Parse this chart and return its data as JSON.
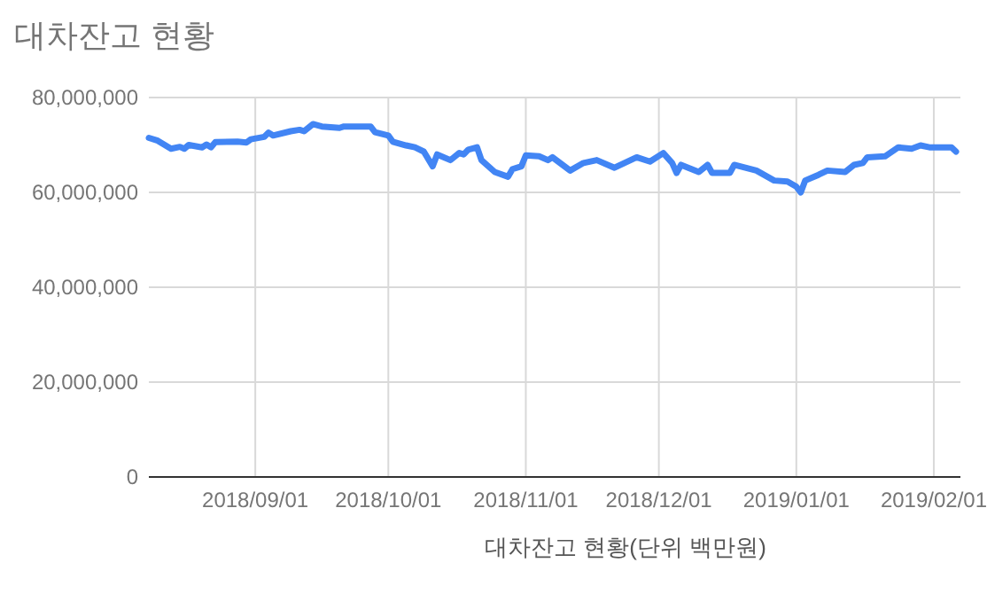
{
  "chart_data": {
    "type": "line",
    "title": "대차잔고 현황",
    "xlabel": "대차잔고 현황(단위 백만원)",
    "x": [
      "2018-08-08",
      "2018-08-10",
      "2018-08-13",
      "2018-08-15",
      "2018-08-16",
      "2018-08-17",
      "2018-08-20",
      "2018-08-21",
      "2018-08-22",
      "2018-08-23",
      "2018-08-28",
      "2018-08-30",
      "2018-08-31",
      "2018-09-03",
      "2018-09-04",
      "2018-09-05",
      "2018-09-09",
      "2018-09-11",
      "2018-09-12",
      "2018-09-14",
      "2018-09-16",
      "2018-09-20",
      "2018-09-21",
      "2018-09-27",
      "2018-09-28",
      "2018-10-01",
      "2018-10-02",
      "2018-10-05",
      "2018-10-07",
      "2018-10-09",
      "2018-10-11",
      "2018-10-12",
      "2018-10-15",
      "2018-10-17",
      "2018-10-18",
      "2018-10-19",
      "2018-10-21",
      "2018-10-22",
      "2018-10-25",
      "2018-10-28",
      "2018-10-29",
      "2018-10-31",
      "2018-11-01",
      "2018-11-04",
      "2018-11-06",
      "2018-11-07",
      "2018-11-11",
      "2018-11-14",
      "2018-11-17",
      "2018-11-21",
      "2018-11-26",
      "2018-11-29",
      "2018-12-02",
      "2018-12-04",
      "2018-12-05",
      "2018-12-06",
      "2018-12-10",
      "2018-12-12",
      "2018-12-13",
      "2018-12-17",
      "2018-12-18",
      "2018-12-23",
      "2018-12-27",
      "2018-12-30",
      "2019-01-01",
      "2019-01-02",
      "2019-01-03",
      "2019-01-06",
      "2019-01-08",
      "2019-01-12",
      "2019-01-14",
      "2019-01-16",
      "2019-01-17",
      "2019-01-21",
      "2019-01-24",
      "2019-01-27",
      "2019-01-29",
      "2019-01-31",
      "2019-02-05",
      "2019-02-06"
    ],
    "series": [
      {
        "color": "#4285f4",
        "values": [
          71500000,
          70900000,
          69200000,
          69600000,
          69200000,
          70000000,
          69500000,
          70100000,
          69500000,
          70600000,
          70700000,
          70500000,
          71200000,
          71700000,
          72600000,
          72000000,
          72900000,
          73200000,
          72900000,
          74400000,
          73900000,
          73600000,
          73900000,
          73900000,
          72700000,
          72000000,
          70700000,
          69900000,
          69500000,
          68600000,
          65500000,
          68000000,
          66800000,
          68300000,
          68000000,
          69000000,
          69500000,
          66800000,
          64300000,
          63300000,
          64900000,
          65500000,
          67800000,
          67600000,
          66800000,
          67400000,
          64600000,
          66200000,
          66800000,
          65200000,
          67400000,
          66500000,
          68300000,
          66200000,
          64100000,
          65800000,
          64300000,
          65800000,
          64100000,
          64100000,
          65800000,
          64600000,
          62500000,
          62300000,
          61200000,
          60000000,
          62500000,
          63700000,
          64600000,
          64300000,
          65800000,
          66200000,
          67400000,
          67600000,
          69500000,
          69200000,
          69900000,
          69500000,
          69500000,
          68600000
        ]
      }
    ],
    "xlim": [
      "2018-08-08",
      "2019-02-07"
    ],
    "xticks": [
      {
        "value": "2018-09-01",
        "label": "2018/09/01"
      },
      {
        "value": "2018-10-01",
        "label": "2018/10/01"
      },
      {
        "value": "2018-11-01",
        "label": "2018/11/01"
      },
      {
        "value": "2018-12-01",
        "label": "2018/12/01"
      },
      {
        "value": "2019-01-01",
        "label": "2019/01/01"
      },
      {
        "value": "2019-02-01",
        "label": "2019/02/01"
      }
    ],
    "ylim": [
      0,
      80000000
    ],
    "yticks": [
      0,
      {
        "value": 20000000,
        "label": "20,000,000"
      },
      {
        "value": 40000000,
        "label": "40,000,000"
      },
      {
        "value": 60000000,
        "label": "60,000,000"
      },
      {
        "value": 80000000,
        "label": "80,000,000"
      }
    ],
    "grid": true,
    "marker": "none",
    "line_style": "solid"
  }
}
